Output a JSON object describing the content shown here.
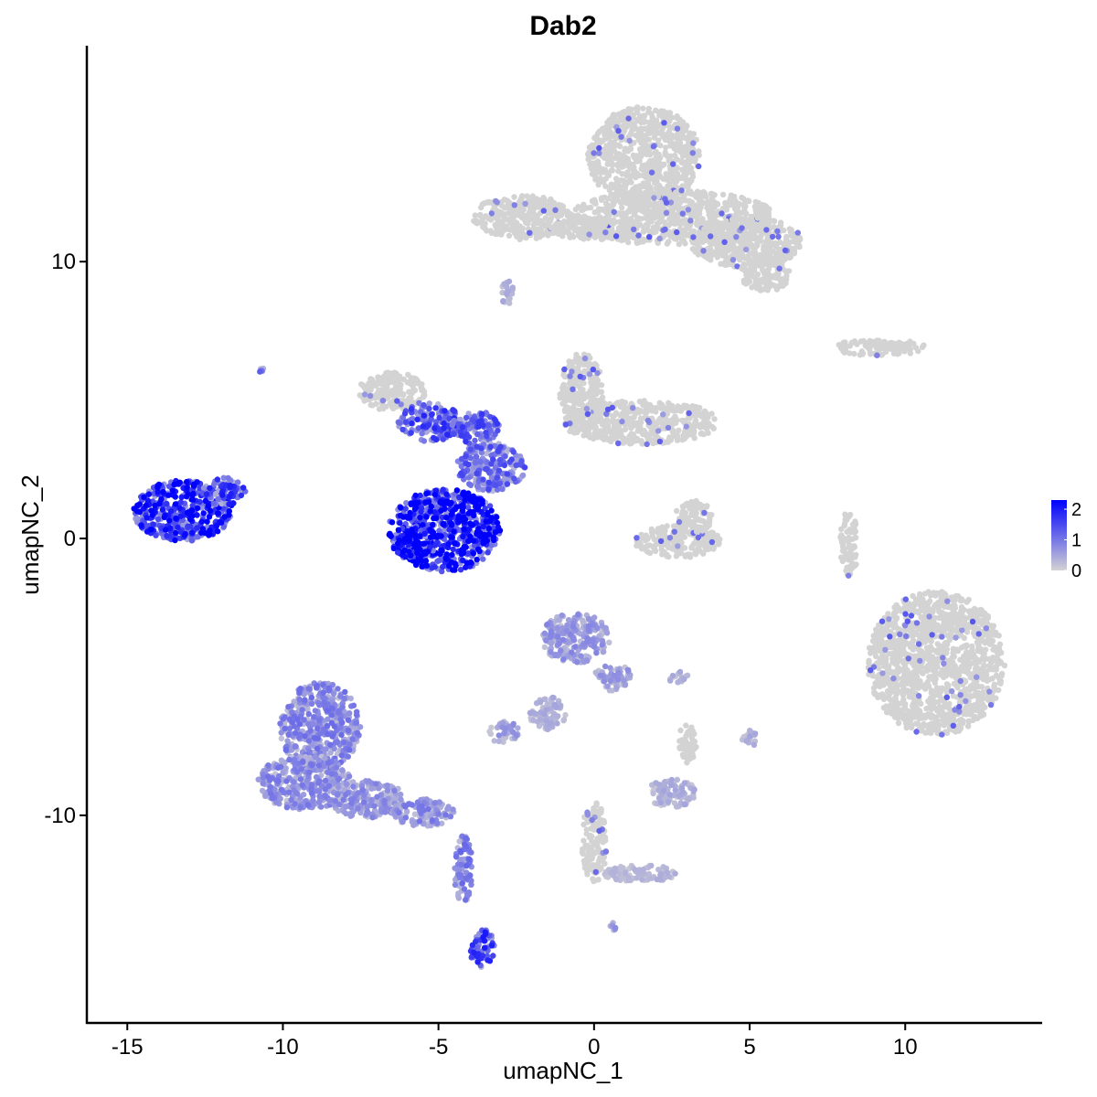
{
  "chart_data": {
    "type": "scatter",
    "title": "Dab2",
    "xlabel": "umapNC_1",
    "ylabel": "umapNC_2",
    "xlim": [
      -16.3,
      14.4
    ],
    "ylim": [
      -17.5,
      17.8
    ],
    "x_ticks": [
      -15,
      -10,
      -5,
      0,
      5,
      10
    ],
    "x_tick_labels": [
      "-15",
      "-10",
      "-5",
      "0",
      "5",
      "10"
    ],
    "y_ticks": [
      -10,
      0,
      10
    ],
    "y_tick_labels": [
      "-10",
      "0",
      "10"
    ],
    "grid": false,
    "legend": {
      "placement": "right",
      "title": "",
      "min": 0,
      "max": 2.3,
      "ticks": [
        0,
        1,
        2
      ],
      "tick_labels": [
        "0",
        "1",
        "2"
      ],
      "low_color": "#d3d3d3",
      "high_color": "#0000ff"
    },
    "clusters": [
      {
        "cx": 1.6,
        "cy": 13.8,
        "rx": 1.8,
        "ry": 1.8,
        "expr": 0.0
      },
      {
        "cx": 2.5,
        "cy": 11.6,
        "rx": 3.3,
        "ry": 1.0,
        "expr": 0.0
      },
      {
        "cx": -2.3,
        "cy": 11.6,
        "rx": 1.6,
        "ry": 0.8,
        "expr": 0.05
      },
      {
        "cx": 0.0,
        "cy": 11.2,
        "rx": 1.4,
        "ry": 0.4,
        "expr": 0.0
      },
      {
        "cx": 4.9,
        "cy": 10.7,
        "rx": 1.8,
        "ry": 0.9,
        "expr": 0.0
      },
      {
        "cx": 5.5,
        "cy": 9.6,
        "rx": 0.8,
        "ry": 0.7,
        "expr": 0.0
      },
      {
        "cx": 9.2,
        "cy": 6.9,
        "rx": 1.5,
        "ry": 0.3,
        "expr": 0.03
      },
      {
        "cx": -0.4,
        "cy": 5.3,
        "rx": 0.7,
        "ry": 1.4,
        "expr": 0.05
      },
      {
        "cx": 1.5,
        "cy": 4.2,
        "rx": 2.5,
        "ry": 0.8,
        "expr": 0.05
      },
      {
        "cx": -6.5,
        "cy": 5.3,
        "rx": 1.1,
        "ry": 0.7,
        "expr": 0.15
      },
      {
        "cx": -5.3,
        "cy": 4.2,
        "rx": 1.0,
        "ry": 0.7,
        "expr": 1.1
      },
      {
        "cx": -3.8,
        "cy": 4.0,
        "rx": 0.8,
        "ry": 0.6,
        "expr": 1.0
      },
      {
        "cx": -3.3,
        "cy": 2.6,
        "rx": 1.1,
        "ry": 0.9,
        "expr": 0.9
      },
      {
        "cx": -4.8,
        "cy": 0.3,
        "rx": 1.8,
        "ry": 1.5,
        "expr": 1.7
      },
      {
        "cx": -5.8,
        "cy": -0.1,
        "rx": 0.8,
        "ry": 0.6,
        "expr": 2.2
      },
      {
        "cx": -13.2,
        "cy": 1.0,
        "rx": 1.6,
        "ry": 1.1,
        "expr": 1.5
      },
      {
        "cx": -11.9,
        "cy": 1.7,
        "rx": 0.7,
        "ry": 0.5,
        "expr": 1.2
      },
      {
        "cx": 2.7,
        "cy": -0.1,
        "rx": 1.4,
        "ry": 0.6,
        "expr": 0.05
      },
      {
        "cx": 3.2,
        "cy": 0.8,
        "rx": 0.6,
        "ry": 0.6,
        "expr": 0.05
      },
      {
        "cx": 8.2,
        "cy": -0.2,
        "rx": 0.3,
        "ry": 1.2,
        "expr": 0.05
      },
      {
        "cx": 11.0,
        "cy": -4.5,
        "rx": 2.2,
        "ry": 2.6,
        "expr": 0.03
      },
      {
        "cx": -0.6,
        "cy": -3.6,
        "rx": 1.1,
        "ry": 0.9,
        "expr": 0.5
      },
      {
        "cx": 0.6,
        "cy": -5.0,
        "rx": 0.6,
        "ry": 0.5,
        "expr": 0.45
      },
      {
        "cx": -1.5,
        "cy": -6.3,
        "rx": 0.6,
        "ry": 0.6,
        "expr": 0.3
      },
      {
        "cx": -2.9,
        "cy": -7.0,
        "rx": 0.5,
        "ry": 0.4,
        "expr": 0.45
      },
      {
        "cx": 2.5,
        "cy": -9.2,
        "rx": 0.8,
        "ry": 0.5,
        "expr": 0.3
      },
      {
        "cx": 3.0,
        "cy": -7.4,
        "rx": 0.3,
        "ry": 0.7,
        "expr": 0.15
      },
      {
        "cx": 5.0,
        "cy": -7.2,
        "rx": 0.3,
        "ry": 0.3,
        "expr": 0.3
      },
      {
        "cx": 2.7,
        "cy": -5.0,
        "rx": 0.4,
        "ry": 0.2,
        "expr": 0.3
      },
      {
        "cx": 0.0,
        "cy": -11.0,
        "rx": 0.4,
        "ry": 1.5,
        "expr": 0.1
      },
      {
        "cx": 1.5,
        "cy": -12.1,
        "rx": 1.2,
        "ry": 0.3,
        "expr": 0.25
      },
      {
        "cx": -8.8,
        "cy": -6.8,
        "rx": 1.3,
        "ry": 1.6,
        "expr": 0.65
      },
      {
        "cx": -9.3,
        "cy": -8.8,
        "rx": 1.5,
        "ry": 1.0,
        "expr": 0.6
      },
      {
        "cx": -7.3,
        "cy": -9.4,
        "rx": 1.2,
        "ry": 0.7,
        "expr": 0.55
      },
      {
        "cx": -5.5,
        "cy": -9.9,
        "rx": 1.0,
        "ry": 0.5,
        "expr": 0.6
      },
      {
        "cx": -4.2,
        "cy": -12.0,
        "rx": 0.3,
        "ry": 1.3,
        "expr": 0.7
      },
      {
        "cx": -3.6,
        "cy": -14.8,
        "rx": 0.4,
        "ry": 0.7,
        "expr": 1.2
      },
      {
        "cx": 0.6,
        "cy": -14.0,
        "rx": 0.15,
        "ry": 0.15,
        "expr": 0.5
      },
      {
        "cx": -10.7,
        "cy": 6.1,
        "rx": 0.1,
        "ry": 0.1,
        "expr": 0.8
      },
      {
        "cx": -2.8,
        "cy": 8.9,
        "rx": 0.2,
        "ry": 0.5,
        "expr": 0.3
      }
    ]
  }
}
